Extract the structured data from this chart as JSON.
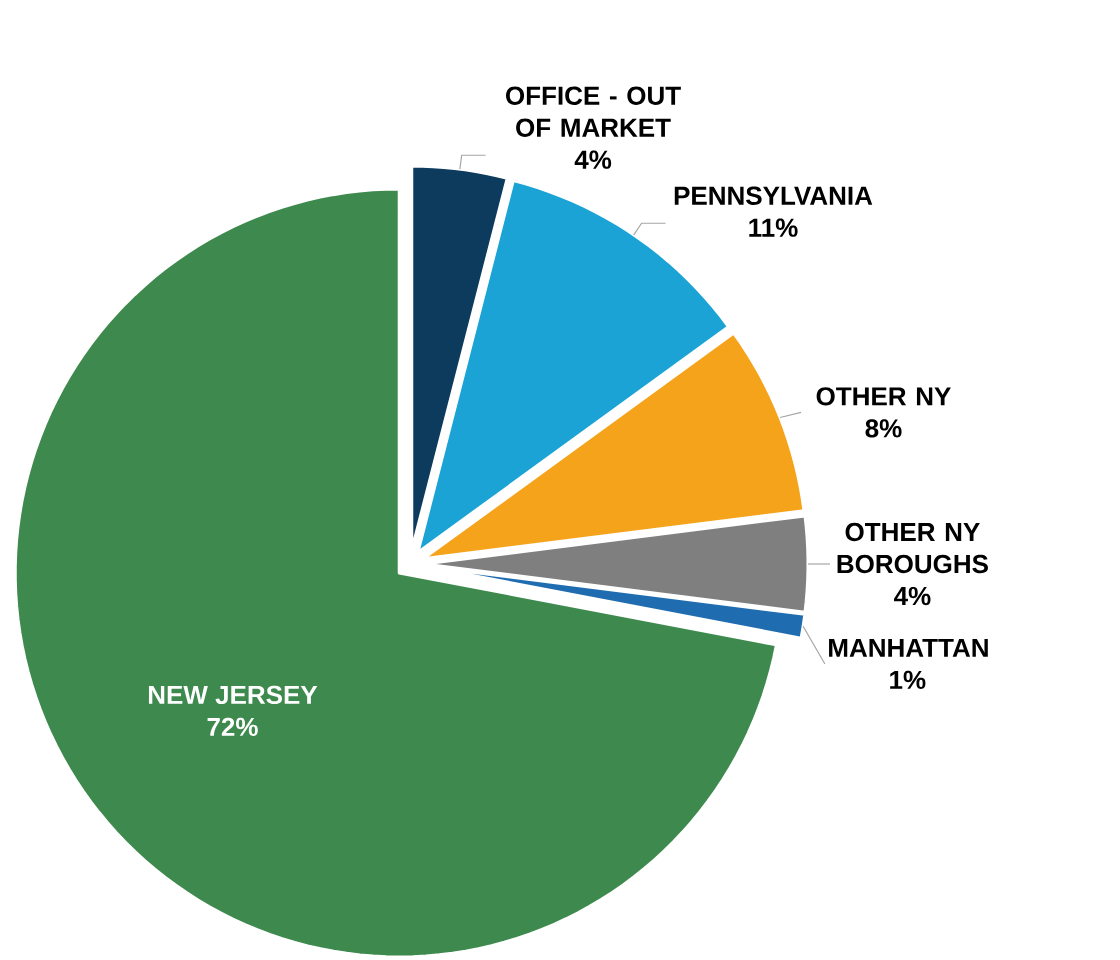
{
  "chart_data": {
    "type": "pie",
    "categories": [
      "OFFICE - OUT OF MARKET",
      "PENNSYLVANIA",
      "OTHER NY",
      "OTHER NY BOROUGHS",
      "MANHATTAN",
      "NEW JERSEY"
    ],
    "values": [
      4,
      11,
      8,
      4,
      1,
      72
    ],
    "colors": [
      "#0d3b5e",
      "#1aa3d4",
      "#f5a31a",
      "#7f7f7f",
      "#1f6db0",
      "#3e8a4e"
    ],
    "value_labels": [
      "4%",
      "11%",
      "8%",
      "4%",
      "1%",
      "72%"
    ]
  }
}
